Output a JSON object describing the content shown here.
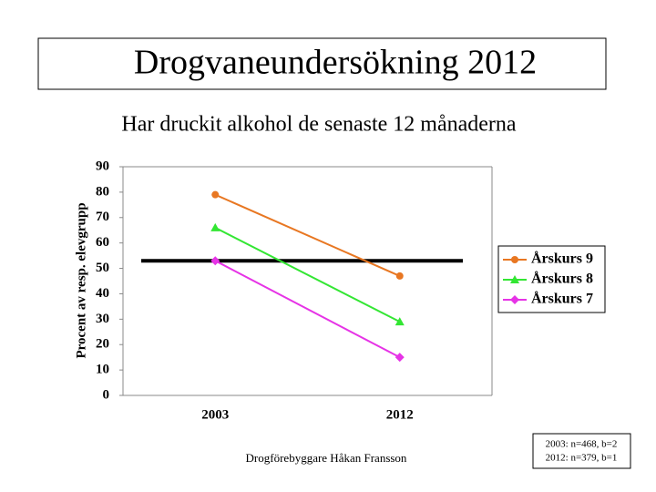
{
  "chart_data": {
    "type": "line",
    "title": "Drogvaneundersökning 2012",
    "subtitle": "Har druckit alkohol de senaste 12 månaderna",
    "y_label": "Procent av resp. elevgrupp",
    "categories": [
      "2003",
      "2012"
    ],
    "series": [
      {
        "name": "Årskurs 9",
        "color": "#e87722",
        "marker": "circle",
        "values": [
          79,
          47
        ]
      },
      {
        "name": "Årskurs 8",
        "color": "#33e633",
        "marker": "triangle",
        "values": [
          66,
          29
        ]
      },
      {
        "name": "Årskurs 7",
        "color": "#e633e6",
        "marker": "diamond",
        "values": [
          53,
          15
        ]
      }
    ],
    "reference_line": 53,
    "ylim": [
      0,
      90
    ],
    "yticks": [
      0,
      10,
      20,
      30,
      40,
      50,
      60,
      70,
      80,
      90
    ],
    "legend": "right"
  },
  "footer": "Drogförebyggare Håkan Fransson",
  "note": [
    "2003: n=468, b=2",
    "2012: n=379, b=1"
  ]
}
